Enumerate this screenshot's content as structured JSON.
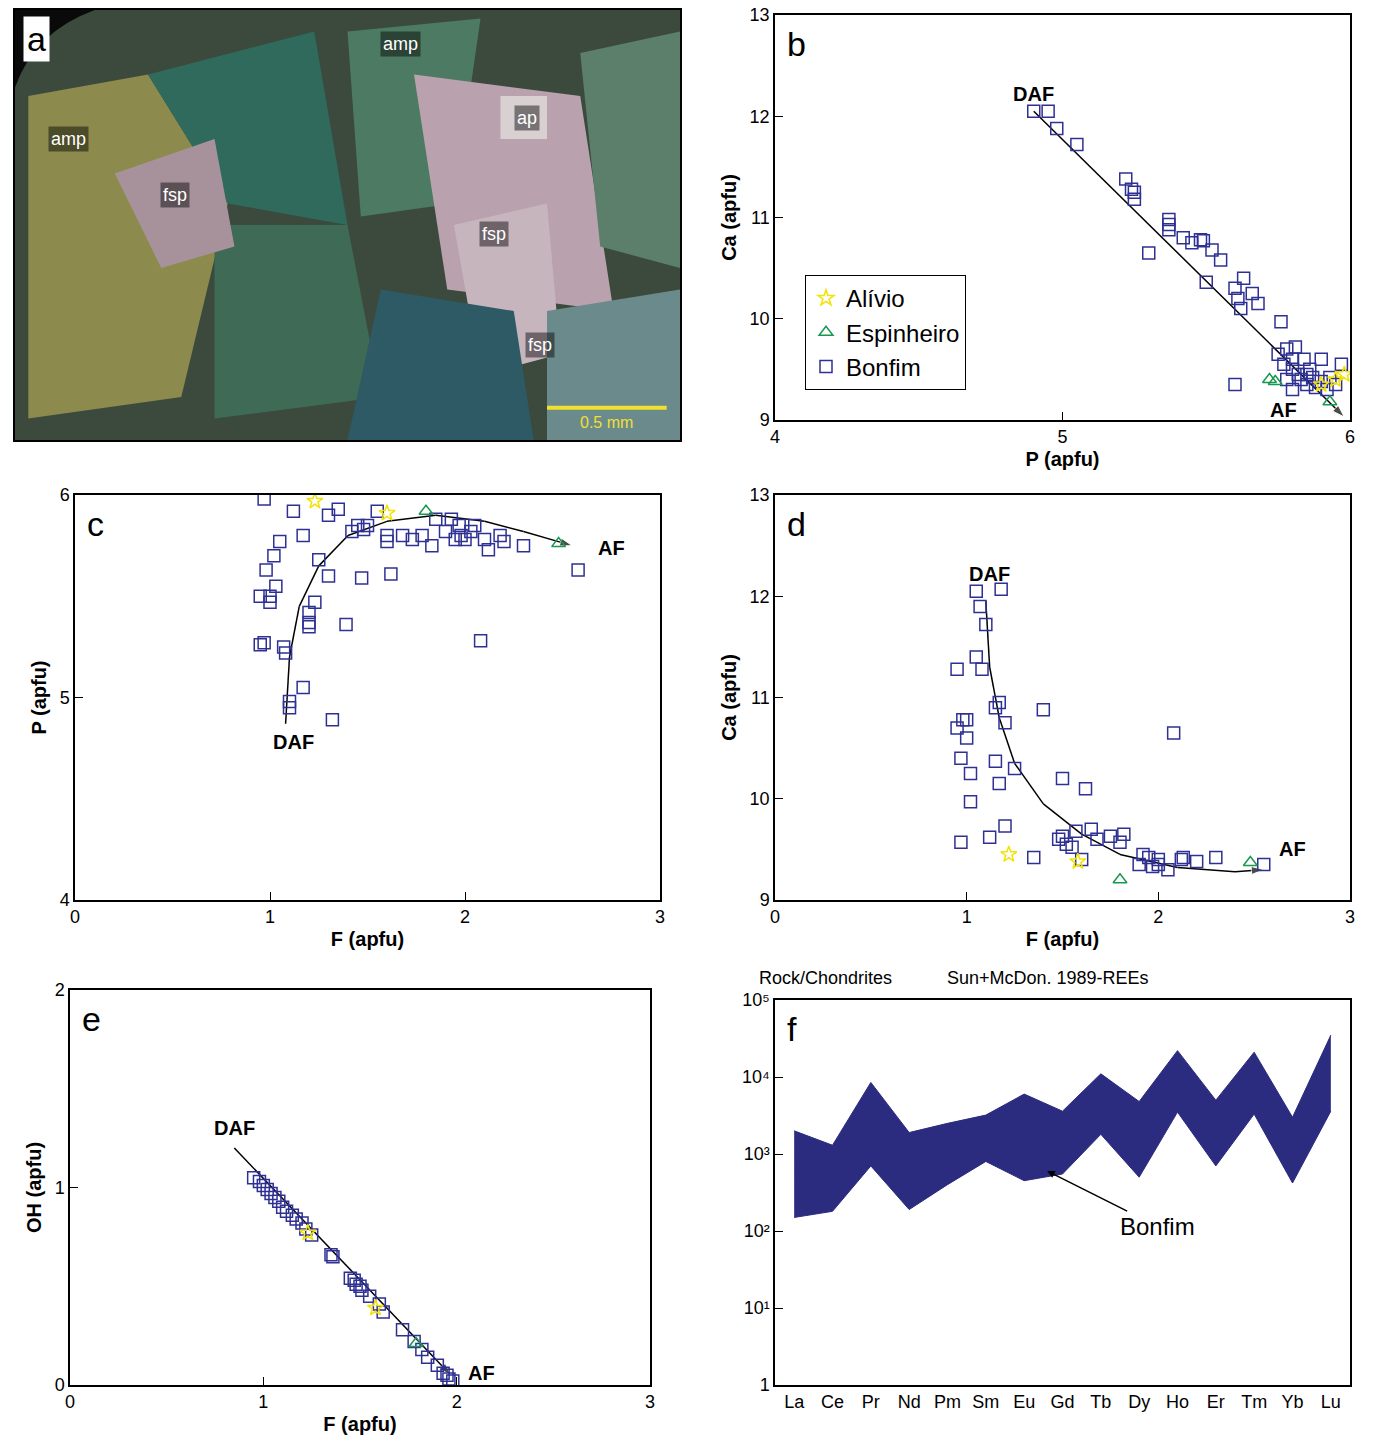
{
  "chart_data": [
    {
      "type": "image",
      "panel": "a",
      "xlim": [
        0,
        1
      ],
      "ylim": [
        0,
        1
      ],
      "tick_labels": false,
      "annotations": [
        {
          "text": "amp",
          "x": 0.58,
          "y": 0.92
        },
        {
          "text": "amp",
          "x": 0.08,
          "y": 0.7
        },
        {
          "text": "fsp",
          "x": 0.24,
          "y": 0.57
        },
        {
          "text": "ap",
          "x": 0.77,
          "y": 0.75
        },
        {
          "text": "fsp",
          "x": 0.72,
          "y": 0.48
        },
        {
          "text": "fsp",
          "x": 0.79,
          "y": 0.22
        }
      ],
      "scale_bar": "0.5 mm"
    },
    {
      "type": "scatter",
      "panel": "b",
      "x_label": "P (apfu)",
      "y_label": "Ca (apfu)",
      "xlim": [
        4,
        6
      ],
      "ylim": [
        9,
        13
      ],
      "xticks": [
        4,
        5,
        6
      ],
      "yticks": [
        9,
        10,
        11,
        12,
        13
      ],
      "legend": "lower left",
      "series": [
        {
          "name": "Bonfim",
          "color": "#2e3192",
          "marker": "square-open",
          "x": [
            4.9,
            4.95,
            4.98,
            5.05,
            5.22,
            5.24,
            5.25,
            5.25,
            5.3,
            5.37,
            5.37,
            5.37,
            5.42,
            5.45,
            5.48,
            5.49,
            5.5,
            5.52,
            5.55,
            5.6,
            5.61,
            5.62,
            5.63,
            5.66,
            5.68,
            5.6,
            5.75,
            5.76,
            5.77,
            5.78,
            5.8,
            5.8,
            5.81,
            5.82,
            5.83,
            5.84,
            5.85,
            5.86,
            5.87,
            5.88,
            5.9,
            5.9,
            5.92,
            5.93,
            5.95,
            5.97,
            5.78,
            5.8,
            5.85
          ],
          "y": [
            12.05,
            12.05,
            11.88,
            11.72,
            11.38,
            11.28,
            11.18,
            11.25,
            10.65,
            10.88,
            10.93,
            10.98,
            10.8,
            10.75,
            10.78,
            10.77,
            10.36,
            10.68,
            10.58,
            10.3,
            10.2,
            10.1,
            10.4,
            10.25,
            10.15,
            9.35,
            9.65,
            9.97,
            9.55,
            9.7,
            9.6,
            9.5,
            9.72,
            9.45,
            9.4,
            9.6,
            9.35,
            9.5,
            9.42,
            9.32,
            9.6,
            9.38,
            9.3,
            9.42,
            9.35,
            9.55,
            9.4,
            9.3,
            9.45
          ]
        },
        {
          "name": "Espinheiro",
          "color": "#1a9850",
          "marker": "triangle-up-open",
          "x": [
            5.72,
            5.74,
            5.93
          ],
          "y": [
            9.4,
            9.38,
            9.18
          ]
        },
        {
          "name": "Alívio",
          "color": "#f2e205",
          "marker": "star-open",
          "x": [
            5.95,
            5.98,
            5.9
          ],
          "y": [
            9.4,
            9.45,
            9.35
          ]
        }
      ],
      "trend": {
        "x": [
          4.9,
          5.98
        ],
        "y": [
          12.05,
          9.03
        ]
      },
      "annotations": [
        {
          "text": "DAF",
          "x": 4.9,
          "y": 12.22
        },
        {
          "text": "AF",
          "x": 5.77,
          "y": 9.1
        }
      ]
    },
    {
      "type": "scatter",
      "panel": "c",
      "x_label": "F (apfu)",
      "y_label": "P (apfu)",
      "xlim": [
        0,
        3
      ],
      "ylim": [
        4,
        6
      ],
      "xticks": [
        0,
        1,
        2,
        3
      ],
      "yticks": [
        4,
        5,
        6
      ],
      "series": [
        {
          "name": "Bonfim",
          "color": "#2e3192",
          "marker": "square-open",
          "x": [
            0.97,
            0.95,
            0.97,
            1.0,
            1.0,
            0.98,
            1.02,
            1.03,
            1.05,
            1.07,
            1.08,
            1.1,
            1.1,
            1.12,
            1.17,
            1.17,
            1.2,
            1.2,
            1.2,
            1.23,
            1.25,
            1.3,
            1.3,
            1.35,
            1.39,
            1.42,
            1.45,
            1.48,
            1.5,
            1.47,
            1.55,
            1.6,
            1.6,
            1.62,
            1.68,
            1.73,
            1.78,
            1.83,
            1.85,
            1.9,
            1.93,
            1.95,
            1.97,
            1.98,
            2.0,
            2.03,
            2.05,
            2.08,
            2.1,
            2.12,
            2.18,
            2.2,
            2.3,
            2.58,
            1.32,
            0.95
          ],
          "y": [
            5.98,
            5.5,
            5.27,
            5.47,
            5.5,
            5.63,
            5.7,
            5.55,
            5.77,
            5.25,
            5.22,
            4.95,
            4.98,
            5.92,
            5.05,
            5.8,
            5.42,
            5.35,
            5.37,
            5.47,
            5.68,
            5.6,
            5.9,
            5.93,
            5.36,
            5.82,
            5.85,
            5.83,
            5.85,
            5.59,
            5.92,
            5.77,
            5.8,
            5.61,
            5.8,
            5.78,
            5.8,
            5.75,
            5.88,
            5.82,
            5.88,
            5.78,
            5.85,
            5.8,
            5.78,
            5.82,
            5.85,
            5.28,
            5.78,
            5.73,
            5.8,
            5.77,
            5.75,
            5.63,
            4.89,
            5.26
          ]
        },
        {
          "name": "Espinheiro",
          "color": "#1a9850",
          "marker": "triangle-up-open",
          "x": [
            1.8,
            2.48
          ],
          "y": [
            5.92,
            5.76
          ]
        },
        {
          "name": "Alívio",
          "color": "#f2e205",
          "marker": "star-open",
          "x": [
            1.23,
            1.6
          ],
          "y": [
            5.97,
            5.91
          ]
        }
      ],
      "trend": {
        "x": [
          1.08,
          1.1,
          1.15,
          1.25,
          1.4,
          1.6,
          1.85,
          2.1,
          2.3,
          2.55
        ],
        "y": [
          4.87,
          5.2,
          5.45,
          5.65,
          5.8,
          5.87,
          5.9,
          5.87,
          5.82,
          5.75
        ]
      },
      "annotations": [
        {
          "text": "DAF",
          "x": 1.12,
          "y": 4.78
        },
        {
          "text": "AF",
          "x": 2.75,
          "y": 5.74
        }
      ]
    },
    {
      "type": "scatter",
      "panel": "d",
      "x_label": "F (apfu)",
      "y_label": "Ca (apfu)",
      "xlim": [
        0,
        3
      ],
      "ylim": [
        9,
        13
      ],
      "xticks": [
        0,
        1,
        2,
        3
      ],
      "yticks": [
        9,
        10,
        11,
        12,
        13
      ],
      "series": [
        {
          "name": "Bonfim",
          "color": "#2e3192",
          "marker": "square-open",
          "x": [
            0.95,
            0.95,
            0.97,
            0.97,
            0.98,
            1.0,
            1.0,
            1.02,
            1.02,
            1.05,
            1.05,
            1.08,
            1.07,
            1.1,
            1.12,
            1.15,
            1.15,
            1.17,
            1.17,
            1.2,
            1.18,
            1.2,
            1.25,
            1.35,
            1.4,
            1.48,
            1.5,
            1.52,
            1.55,
            1.57,
            1.6,
            1.62,
            1.65,
            1.68,
            1.75,
            1.8,
            1.82,
            1.9,
            1.92,
            1.95,
            2.0,
            2.0,
            2.05,
            2.08,
            2.12,
            2.13,
            2.2,
            2.3,
            2.55,
            1.5,
            1.97
          ],
          "y": [
            11.28,
            10.7,
            10.4,
            9.57,
            10.78,
            10.78,
            10.6,
            10.25,
            9.97,
            11.4,
            12.05,
            11.28,
            11.9,
            11.72,
            9.62,
            10.9,
            10.37,
            10.15,
            10.95,
            10.75,
            12.07,
            9.73,
            10.3,
            9.42,
            10.88,
            9.6,
            10.2,
            9.55,
            9.52,
            9.68,
            9.4,
            10.1,
            9.7,
            9.6,
            9.63,
            9.57,
            9.65,
            9.35,
            9.45,
            9.42,
            9.35,
            9.4,
            9.3,
            10.65,
            9.4,
            9.42,
            9.38,
            9.42,
            9.35,
            9.63,
            9.33
          ]
        },
        {
          "name": "Espinheiro",
          "color": "#1a9850",
          "marker": "triangle-up-open",
          "x": [
            1.8,
            2.48
          ],
          "y": [
            9.2,
            9.37
          ]
        },
        {
          "name": "Alívio",
          "color": "#f2e205",
          "marker": "star-open",
          "x": [
            1.22,
            1.58
          ],
          "y": [
            9.45,
            9.38
          ]
        }
      ],
      "trend": {
        "x": [
          1.1,
          1.12,
          1.17,
          1.25,
          1.4,
          1.6,
          1.8,
          2.1,
          2.4,
          2.55
        ],
        "y": [
          11.95,
          11.3,
          10.8,
          10.35,
          9.95,
          9.65,
          9.45,
          9.32,
          9.28,
          9.3
        ]
      },
      "annotations": [
        {
          "text": "DAF",
          "x": 1.12,
          "y": 12.22
        },
        {
          "text": "AF",
          "x": 2.7,
          "y": 9.5
        }
      ]
    },
    {
      "type": "scatter",
      "panel": "e",
      "x_label": "F (apfu)",
      "y_label": "OH (apfu)",
      "xlim": [
        0,
        3
      ],
      "ylim": [
        0,
        2
      ],
      "xticks": [
        0,
        1,
        2,
        3
      ],
      "yticks": [
        0,
        1,
        2
      ],
      "series": [
        {
          "name": "Bonfim",
          "color": "#2e3192",
          "marker": "square-open",
          "x": [
            0.95,
            0.98,
            1.0,
            1.02,
            1.04,
            1.06,
            1.08,
            1.1,
            1.12,
            1.15,
            1.17,
            1.2,
            1.22,
            1.25,
            1.35,
            1.36,
            1.45,
            1.47,
            1.48,
            1.5,
            1.51,
            1.55,
            1.6,
            1.62,
            1.72,
            1.78,
            1.82,
            1.85,
            1.9,
            1.93,
            1.95,
            1.96,
            1.98
          ],
          "y": [
            1.05,
            1.03,
            1.01,
            0.99,
            0.97,
            0.95,
            0.93,
            0.9,
            0.88,
            0.86,
            0.84,
            0.82,
            0.79,
            0.76,
            0.66,
            0.65,
            0.54,
            0.53,
            0.51,
            0.5,
            0.48,
            0.45,
            0.41,
            0.37,
            0.28,
            0.22,
            0.18,
            0.14,
            0.1,
            0.06,
            0.05,
            0.03,
            0.02
          ]
        },
        {
          "name": "Espinheiro",
          "color": "#1a9850",
          "marker": "triangle-up-open",
          "x": [
            1.79
          ],
          "y": [
            0.21
          ]
        },
        {
          "name": "Alívio",
          "color": "#f2e205",
          "marker": "star-open",
          "x": [
            1.23,
            1.58
          ],
          "y": [
            0.77,
            0.39
          ]
        }
      ],
      "trend": {
        "x": [
          0.85,
          1.97
        ],
        "y": [
          1.2,
          0.05
        ]
      },
      "annotations": [
        {
          "text": "DAF",
          "x": 0.85,
          "y": 1.3
        },
        {
          "text": "AF",
          "x": 2.13,
          "y": 0.06
        }
      ]
    },
    {
      "type": "area",
      "panel": "f",
      "title": "Rock/Chondrites",
      "subtitle": "Sun+McDon. 1989-REEs",
      "log": "y",
      "categories": [
        "La",
        "Ce",
        "Pr",
        "Nd",
        "Pm",
        "Sm",
        "Eu",
        "Gd",
        "Tb",
        "Dy",
        "Ho",
        "Er",
        "Tm",
        "Yb",
        "Lu"
      ],
      "ylim": [
        1,
        100000
      ],
      "yticks": [
        1,
        {
          "value": 10,
          "label": "10¹"
        },
        {
          "value": 100,
          "label": "10²"
        },
        {
          "value": 1000,
          "label": "10³"
        },
        {
          "value": 10000,
          "label": "10⁴"
        },
        {
          "value": 100000,
          "label": "10⁵"
        }
      ],
      "series": [
        {
          "name": "Bonfim",
          "color": "#2b2b80",
          "lower": [
            150,
            180,
            700,
            190,
            400,
            800,
            450,
            550,
            1800,
            500,
            3500,
            700,
            3300,
            420,
            3600
          ],
          "upper": [
            2000,
            1300,
            8500,
            1900,
            2500,
            3200,
            6000,
            3600,
            11000,
            4800,
            22000,
            5000,
            21000,
            3000,
            35000
          ]
        }
      ],
      "annotations": [
        {
          "text": "Bonfim",
          "x": 6.6,
          "y": 600
        }
      ]
    }
  ]
}
